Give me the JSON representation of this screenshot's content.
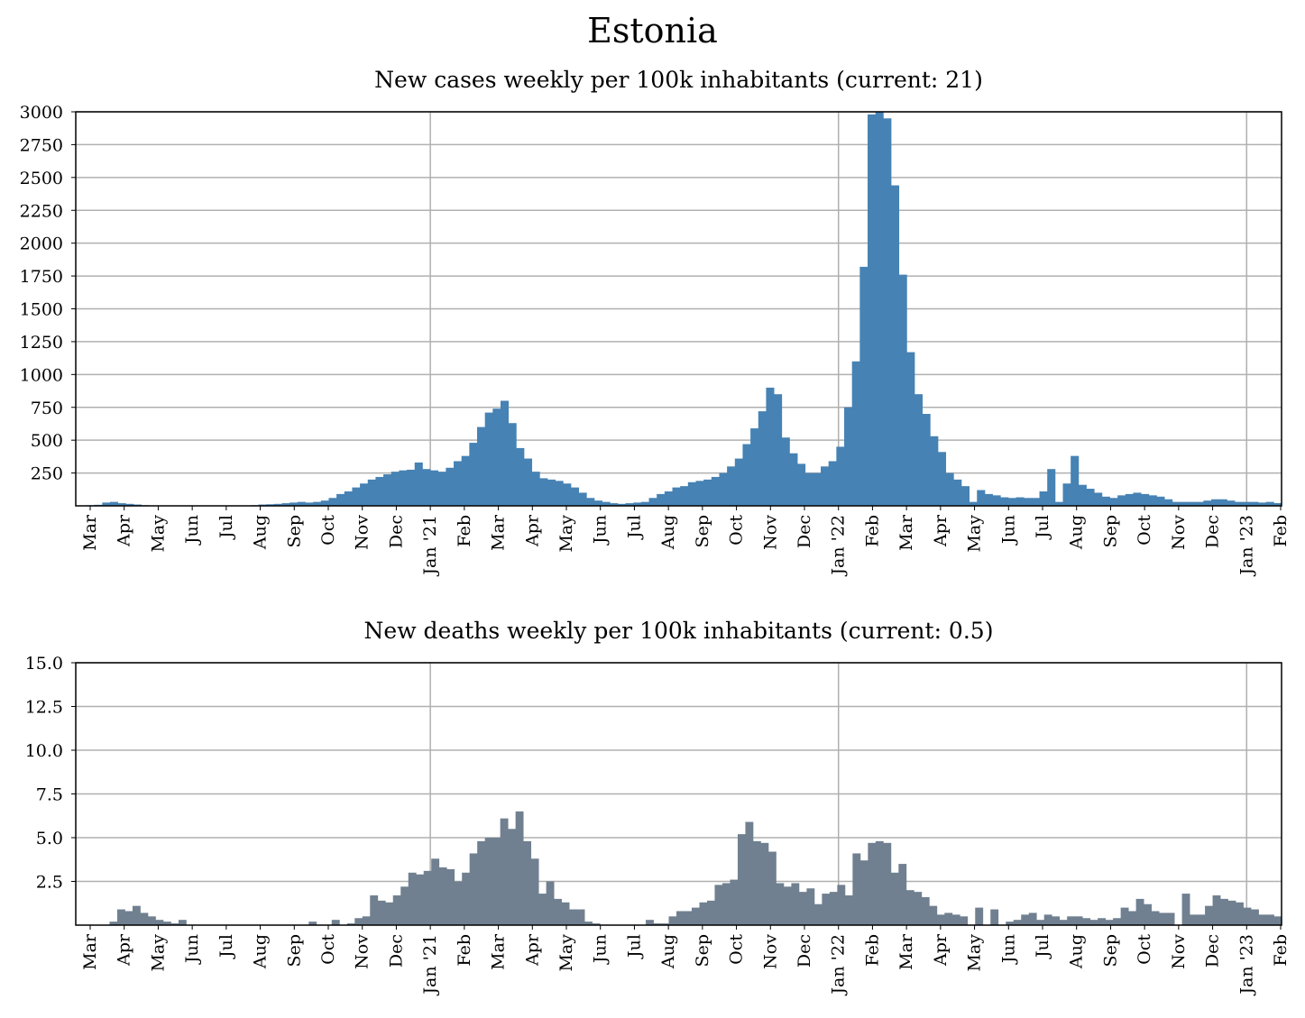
{
  "figure": {
    "title": "Estonia"
  },
  "x_ticks": [
    "Mar",
    "Apr",
    "May",
    "Jun",
    "Jul",
    "Aug",
    "Sep",
    "Oct",
    "Nov",
    "Dec",
    "Jan '21",
    "Feb",
    "Mar",
    "Apr",
    "May",
    "Jun",
    "Jul",
    "Aug",
    "Sep",
    "Oct",
    "Nov",
    "Dec",
    "Jan '22",
    "Feb",
    "Mar",
    "Apr",
    "May",
    "Jun",
    "Jul",
    "Aug",
    "Sep",
    "Oct",
    "Nov",
    "Dec",
    "Jan '23",
    "Feb"
  ],
  "colors": {
    "cases": "#4682b4",
    "deaths": "#708090",
    "grid": "#b0b0b0"
  },
  "chart_data": [
    {
      "type": "bar",
      "title": "New cases weekly per 100k inhabitants (current: 21)",
      "ylim": [
        0,
        3000
      ],
      "yticks": [
        "3000",
        "2750",
        "2500",
        "2250",
        "2000",
        "1750",
        "1500",
        "1250",
        "1000",
        "750",
        "500",
        "250"
      ],
      "grid": true,
      "values": [
        5,
        8,
        25,
        30,
        20,
        15,
        10,
        5,
        3,
        2,
        2,
        2,
        2,
        2,
        2,
        2,
        2,
        2,
        2,
        3,
        3,
        5,
        10,
        12,
        15,
        20,
        25,
        30,
        25,
        30,
        40,
        60,
        90,
        110,
        140,
        170,
        200,
        220,
        240,
        260,
        270,
        275,
        330,
        280,
        270,
        260,
        290,
        340,
        380,
        480,
        600,
        710,
        740,
        800,
        630,
        440,
        360,
        260,
        210,
        200,
        190,
        170,
        140,
        100,
        60,
        40,
        30,
        20,
        15,
        20,
        25,
        30,
        60,
        90,
        110,
        140,
        150,
        180,
        190,
        200,
        220,
        250,
        300,
        360,
        470,
        590,
        720,
        900,
        850,
        520,
        400,
        320,
        250,
        250,
        300,
        340,
        450,
        750,
        1100,
        1820,
        2980,
        3000,
        2950,
        2440,
        1760,
        1170,
        850,
        700,
        530,
        410,
        250,
        200,
        150,
        30,
        120,
        90,
        80,
        65,
        60,
        65,
        60,
        60,
        110,
        280,
        30,
        170,
        380,
        160,
        130,
        100,
        70,
        60,
        80,
        90,
        100,
        90,
        80,
        70,
        50,
        30,
        30,
        30,
        30,
        40,
        50,
        50,
        40,
        30,
        30,
        30,
        25,
        30,
        21
      ]
    },
    {
      "type": "bar",
      "title": "New deaths weekly per 100k inhabitants (current: 0.5)",
      "ylim": [
        0,
        15
      ],
      "yticks": [
        "15.0",
        "12.5",
        "10.0",
        "7.5",
        "5.0",
        "2.5"
      ],
      "grid": true,
      "values": [
        0,
        0,
        0,
        0.2,
        0.9,
        0.8,
        1.1,
        0.7,
        0.5,
        0.3,
        0.2,
        0.1,
        0.3,
        0,
        0,
        0,
        0,
        0,
        0,
        0,
        0,
        0,
        0,
        0,
        0,
        0,
        0,
        0,
        0,
        0.2,
        0,
        0,
        0.3,
        0,
        0.1,
        0.4,
        0.5,
        1.7,
        1.4,
        1.3,
        1.7,
        2.2,
        3.0,
        2.9,
        3.1,
        3.8,
        3.3,
        3.2,
        2.5,
        3.0,
        4.1,
        4.8,
        5.0,
        5.0,
        6.1,
        5.5,
        6.5,
        4.8,
        3.8,
        1.8,
        2.5,
        1.5,
        1.3,
        0.9,
        0.9,
        0.2,
        0.1,
        0,
        0,
        0,
        0,
        0,
        0,
        0.3,
        0.1,
        0.1,
        0.5,
        0.8,
        0.8,
        1.0,
        1.3,
        1.4,
        2.3,
        2.4,
        2.6,
        5.2,
        5.9,
        4.8,
        4.7,
        4.2,
        2.4,
        2.2,
        2.4,
        1.9,
        2.1,
        1.2,
        1.8,
        1.9,
        2.3,
        1.7,
        4.1,
        3.7,
        4.7,
        4.8,
        4.7,
        3.0,
        3.5,
        2.0,
        1.9,
        1.6,
        1.1,
        0.6,
        0.7,
        0.6,
        0.5,
        0,
        1.0,
        0,
        0.9,
        0,
        0.2,
        0.3,
        0.6,
        0.7,
        0.3,
        0.6,
        0.5,
        0.3,
        0.5,
        0.5,
        0.4,
        0.3,
        0.4,
        0.3,
        0.4,
        1.0,
        0.8,
        1.5,
        1.2,
        0.8,
        0.7,
        0.7,
        0,
        1.8,
        0.6,
        0.6,
        1.1,
        1.7,
        1.5,
        1.4,
        1.3,
        1.0,
        0.9,
        0.6,
        0.6,
        0.5
      ]
    }
  ]
}
